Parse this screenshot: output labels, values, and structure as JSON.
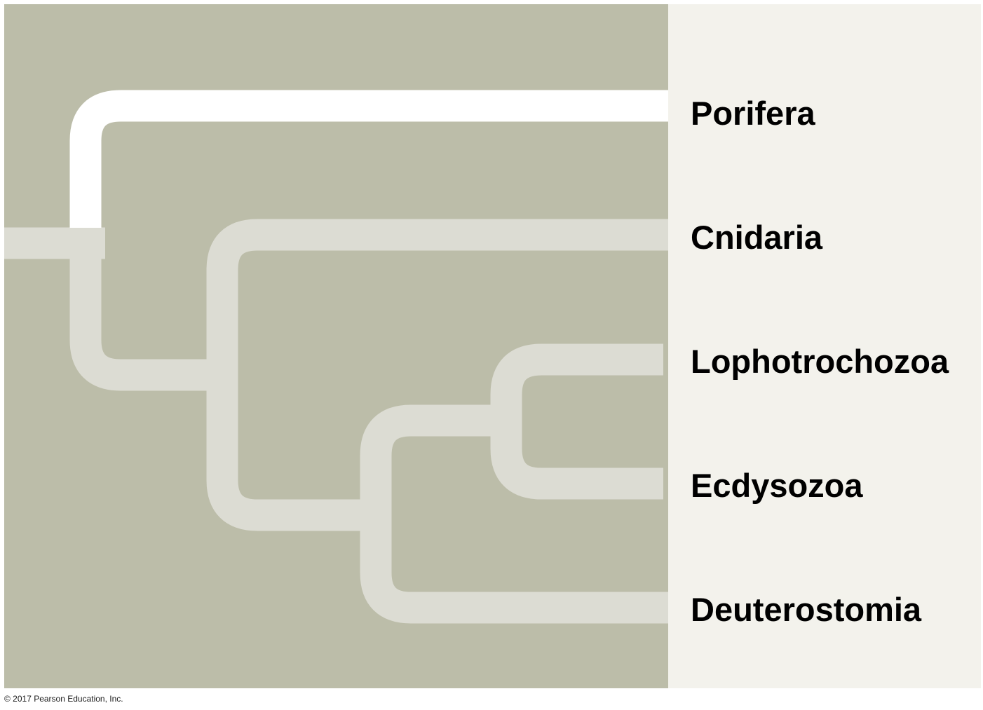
{
  "diagram": {
    "colors": {
      "page_background": "#ffffff",
      "tree_panel": "#bcbda9",
      "label_panel": "#f3f2ec",
      "branch": "#dcdcd3",
      "highlighted_branch": "#ffffff"
    },
    "taxa": [
      {
        "id": "porifera",
        "label": "Porifera"
      },
      {
        "id": "cnidaria",
        "label": "Cnidaria"
      },
      {
        "id": "lophotrochozoa",
        "label": "Lophotrochozoa"
      },
      {
        "id": "ecdysozoa",
        "label": "Ecdysozoa"
      },
      {
        "id": "deuterostomia",
        "label": "Deuterostomia"
      }
    ],
    "highlighted_taxon": "porifera"
  },
  "footer": {
    "copyright": "© 2017 Pearson Education, Inc."
  }
}
